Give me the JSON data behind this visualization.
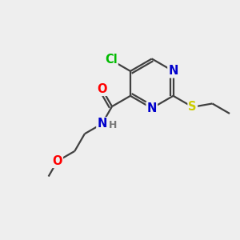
{
  "bg_color": "#eeeeee",
  "atom_colors": {
    "C": "#000000",
    "N": "#0000cc",
    "O": "#ff0000",
    "S": "#cccc00",
    "Cl": "#00bb00",
    "H": "#777777"
  },
  "bond_color": "#404040",
  "bond_width": 1.6,
  "font_size": 10.5
}
